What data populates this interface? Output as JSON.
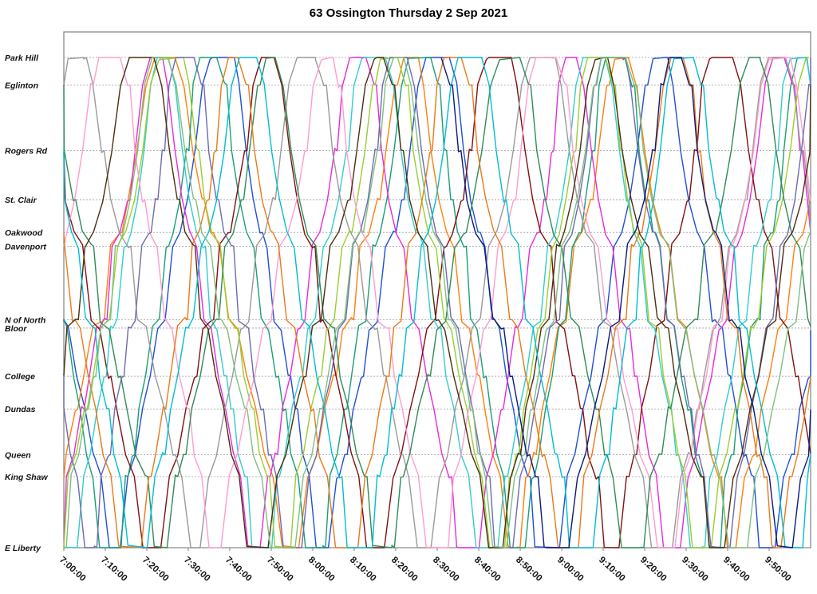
{
  "chart_data": {
    "type": "line",
    "title": "63 Ossington Thursday 2 Sep 2021",
    "xlabel": "",
    "ylabel": "",
    "x_ticks": [
      "7:00:00",
      "7:10:00",
      "7:20:00",
      "7:30:00",
      "7:40:00",
      "7:50:00",
      "8:00:00",
      "8:10:00",
      "8:20:00",
      "8:30:00",
      "8:40:00",
      "8:50:00",
      "9:00:00",
      "9:10:00",
      "9:20:00",
      "9:30:00",
      "9:40:00",
      "9:50:00"
    ],
    "xlim": [
      "7:00:00",
      "10:00:00"
    ],
    "grid": true,
    "legend": "none",
    "stops": [
      {
        "name": "Park Hill",
        "pos": 0
      },
      {
        "name": "Eglinton",
        "pos": 0.056
      },
      {
        "name": "Rogers Rd",
        "pos": 0.19
      },
      {
        "name": "St. Clair",
        "pos": 0.29
      },
      {
        "name": "Oakwood",
        "pos": 0.357
      },
      {
        "name": "Davenport",
        "pos": 0.385
      },
      {
        "name": "N of North",
        "pos": 0.535
      },
      {
        "name": "Bloor",
        "pos": 0.552
      },
      {
        "name": "College",
        "pos": 0.65
      },
      {
        "name": "Dundas",
        "pos": 0.717
      },
      {
        "name": "Queen",
        "pos": 0.81
      },
      {
        "name": "King Shaw",
        "pos": 0.855
      },
      {
        "name": "E Liberty",
        "pos": 1
      }
    ],
    "colors": [
      "#1f4fd6",
      "#ff7f0e",
      "#1a9e77",
      "#e82ad8",
      "#7f1010",
      "#3cc",
      "#999999",
      "#9acd32",
      "#ff9ccf",
      "#6b6bb0",
      "#2e8b57",
      "#e87a1a",
      "#4b2e0f",
      "#00bcd4",
      "#7fbf7f",
      "#0b1a7a"
    ],
    "vehicles": [
      {
        "color": 0,
        "start": 3,
        "turn": 22
      },
      {
        "color": 1,
        "start": 8,
        "turn": 24
      },
      {
        "color": 2,
        "start": 1,
        "turn": 20
      },
      {
        "color": 3,
        "start": 12,
        "turn": 22
      },
      {
        "color": 4,
        "start": 6,
        "turn": 23
      },
      {
        "color": 5,
        "start": 15,
        "turn": 21
      },
      {
        "color": 6,
        "start": 18,
        "turn": 24
      },
      {
        "color": 7,
        "start": 10,
        "turn": 22
      },
      {
        "color": 8,
        "start": 21,
        "turn": 23
      },
      {
        "color": 9,
        "start": 24,
        "turn": 20
      },
      {
        "color": 10,
        "start": 4,
        "turn": 25
      },
      {
        "color": 11,
        "start": 27,
        "turn": 22
      },
      {
        "color": 12,
        "start": 30,
        "turn": 24
      },
      {
        "color": 13,
        "start": 33,
        "turn": 21
      },
      {
        "color": 14,
        "start": 36,
        "turn": 23
      },
      {
        "color": 15,
        "start": 131,
        "turn": 25
      }
    ]
  }
}
